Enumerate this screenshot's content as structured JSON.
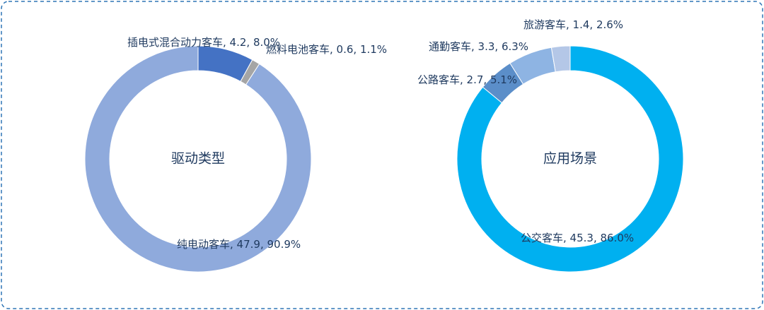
{
  "chart_data": [
    {
      "type": "donut",
      "title": "驱动类型",
      "categories": [
        "插电式混合动力客车",
        "燃料电池客车",
        "纯电动客车"
      ],
      "values": [
        4.2,
        0.6,
        47.9
      ],
      "value_labels": [
        ", 4.2, 8.0%",
        ", 0.6, 1.1%",
        ", 47.9, 90.9%"
      ],
      "colors": [
        "#4472c4",
        "#a5a5a5",
        "#8faadc"
      ]
    },
    {
      "type": "donut",
      "title": "应用场景",
      "categories": [
        "公交客车",
        "公路客车",
        "通勤客车",
        "旅游客车"
      ],
      "values": [
        45.3,
        2.7,
        3.3,
        1.4
      ],
      "value_labels": [
        ", 45.3, 86.0%",
        ", 2.7, 5.1%",
        ", 3.3, 6.3%",
        ", 1.4, 2.6%"
      ],
      "colors": [
        "#00b0f0",
        "#5b8ec9",
        "#8eb4e3",
        "#b4c7e7"
      ]
    }
  ]
}
